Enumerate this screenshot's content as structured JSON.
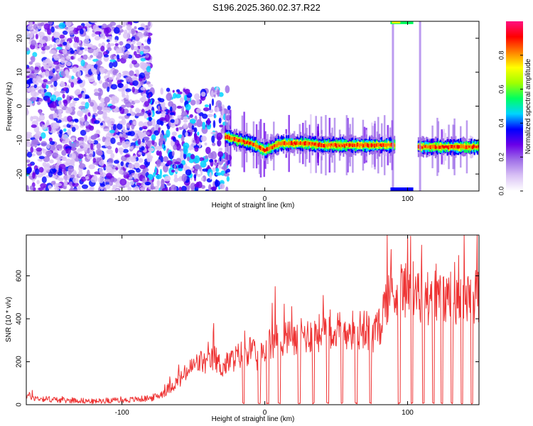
{
  "title": "S196.2025.360.02.37.R22",
  "chart_data": [
    {
      "type": "heatmap",
      "xlabel": "Height of straight line (km)",
      "ylabel": "Frequency (Hz)",
      "xlim": [
        -167,
        150
      ],
      "ylim": [
        -25,
        25
      ],
      "xticks": [
        -100,
        0,
        100
      ],
      "yticks": [
        -20,
        -10,
        0,
        10,
        20
      ],
      "colorbar": {
        "label": "Normalized spectral amplitude",
        "range": [
          0.0,
          1.0
        ],
        "ticks": [
          0.0,
          0.2,
          0.4,
          0.6,
          0.8
        ],
        "tick_labels": [
          "0.0",
          "0.2",
          "0.4",
          "0.6",
          "0.8"
        ],
        "colors": [
          "#ffffff",
          "#d9c2f5",
          "#a070e8",
          "#6a00e8",
          "#0000ff",
          "#00d4ff",
          "#00ff60",
          "#a0ff00",
          "#ffff00",
          "#ff8000",
          "#ff0000",
          "#ff1080"
        ]
      },
      "ridge": {
        "x": [
          -27,
          -20,
          -10,
          -5,
          0,
          5,
          10,
          20,
          30,
          40,
          50,
          60,
          70,
          80,
          90,
          110,
          120,
          130,
          140,
          150
        ],
        "freq": [
          -9,
          -10,
          -11,
          -12,
          -13,
          -12,
          -11,
          -11,
          -11,
          -11.5,
          -11.5,
          -11.5,
          -11.5,
          -11.5,
          -11.5,
          -12,
          -12,
          -12,
          -12,
          -12
        ]
      },
      "gap": [
        91,
        107
      ]
    },
    {
      "type": "line",
      "xlabel": "Height of straight line (km)",
      "ylabel": "SNR (10 * v/v)",
      "xlim": [
        -167,
        150
      ],
      "ylim": [
        0,
        790
      ],
      "xticks": [
        -100,
        0,
        100
      ],
      "yticks": [
        0,
        200,
        400,
        600
      ],
      "series": [
        {
          "name": "SNR",
          "color": "#ee3333",
          "x": [
            -167,
            -160,
            -150,
            -140,
            -130,
            -120,
            -110,
            -100,
            -90,
            -80,
            -75,
            -70,
            -65,
            -60,
            -55,
            -50,
            -45,
            -40,
            -35,
            -30,
            -25,
            -20,
            -15,
            -10,
            -5,
            0,
            5,
            10,
            15,
            20,
            25,
            30,
            35,
            40,
            45,
            50,
            55,
            60,
            65,
            70,
            75,
            80,
            85,
            90,
            95,
            100,
            105,
            110,
            115,
            120,
            125,
            130,
            135,
            140,
            145,
            150
          ],
          "y": [
            45,
            30,
            25,
            20,
            20,
            15,
            20,
            20,
            25,
            30,
            40,
            60,
            90,
            110,
            150,
            180,
            200,
            190,
            220,
            170,
            200,
            220,
            240,
            260,
            210,
            250,
            300,
            300,
            320,
            300,
            330,
            320,
            340,
            330,
            360,
            340,
            350,
            350,
            340,
            360,
            330,
            350,
            500,
            520,
            530,
            560,
            520,
            480,
            500,
            520,
            490,
            510,
            480,
            500,
            490,
            520
          ]
        }
      ],
      "dropouts": [
        -15,
        -4,
        2,
        10,
        24,
        34,
        44,
        54,
        64,
        74,
        94,
        103,
        111,
        118,
        124,
        131,
        138,
        145
      ]
    }
  ]
}
